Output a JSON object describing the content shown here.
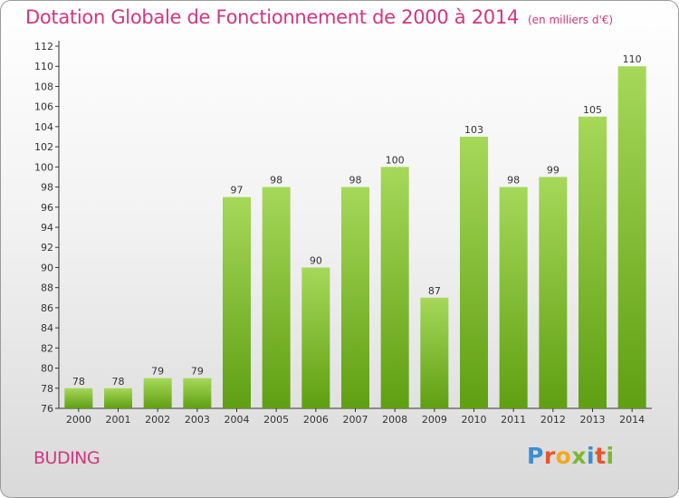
{
  "header": {
    "title": "Dotation Globale de Fonctionnement de 2000 à 2014",
    "unit": "(en milliers d'€)"
  },
  "city": "BUDING",
  "logo": {
    "text": "Proxiti",
    "colors": [
      "#3a8fd0",
      "#e8542c",
      "#f2a81f",
      "#7cb82f",
      "#3a8fd0",
      "#e8542c",
      "#7cb82f"
    ]
  },
  "colors": {
    "title": "#d2367f",
    "bar_light": "#a6d85a",
    "bar_dark": "#5f9f12"
  },
  "chart_data": {
    "type": "bar",
    "categories": [
      "2000",
      "2001",
      "2002",
      "2003",
      "2004",
      "2005",
      "2006",
      "2007",
      "2008",
      "2009",
      "2010",
      "2011",
      "2012",
      "2013",
      "2014"
    ],
    "values": [
      78,
      78,
      79,
      79,
      97,
      98,
      90,
      98,
      100,
      87,
      103,
      98,
      99,
      105,
      110
    ],
    "title": "Dotation Globale de Fonctionnement de 2000 à 2014",
    "ylim": [
      76,
      112
    ],
    "yticks": [
      76,
      78,
      80,
      82,
      84,
      86,
      88,
      90,
      92,
      94,
      96,
      98,
      100,
      102,
      104,
      106,
      108,
      110,
      112
    ],
    "grid": false
  }
}
